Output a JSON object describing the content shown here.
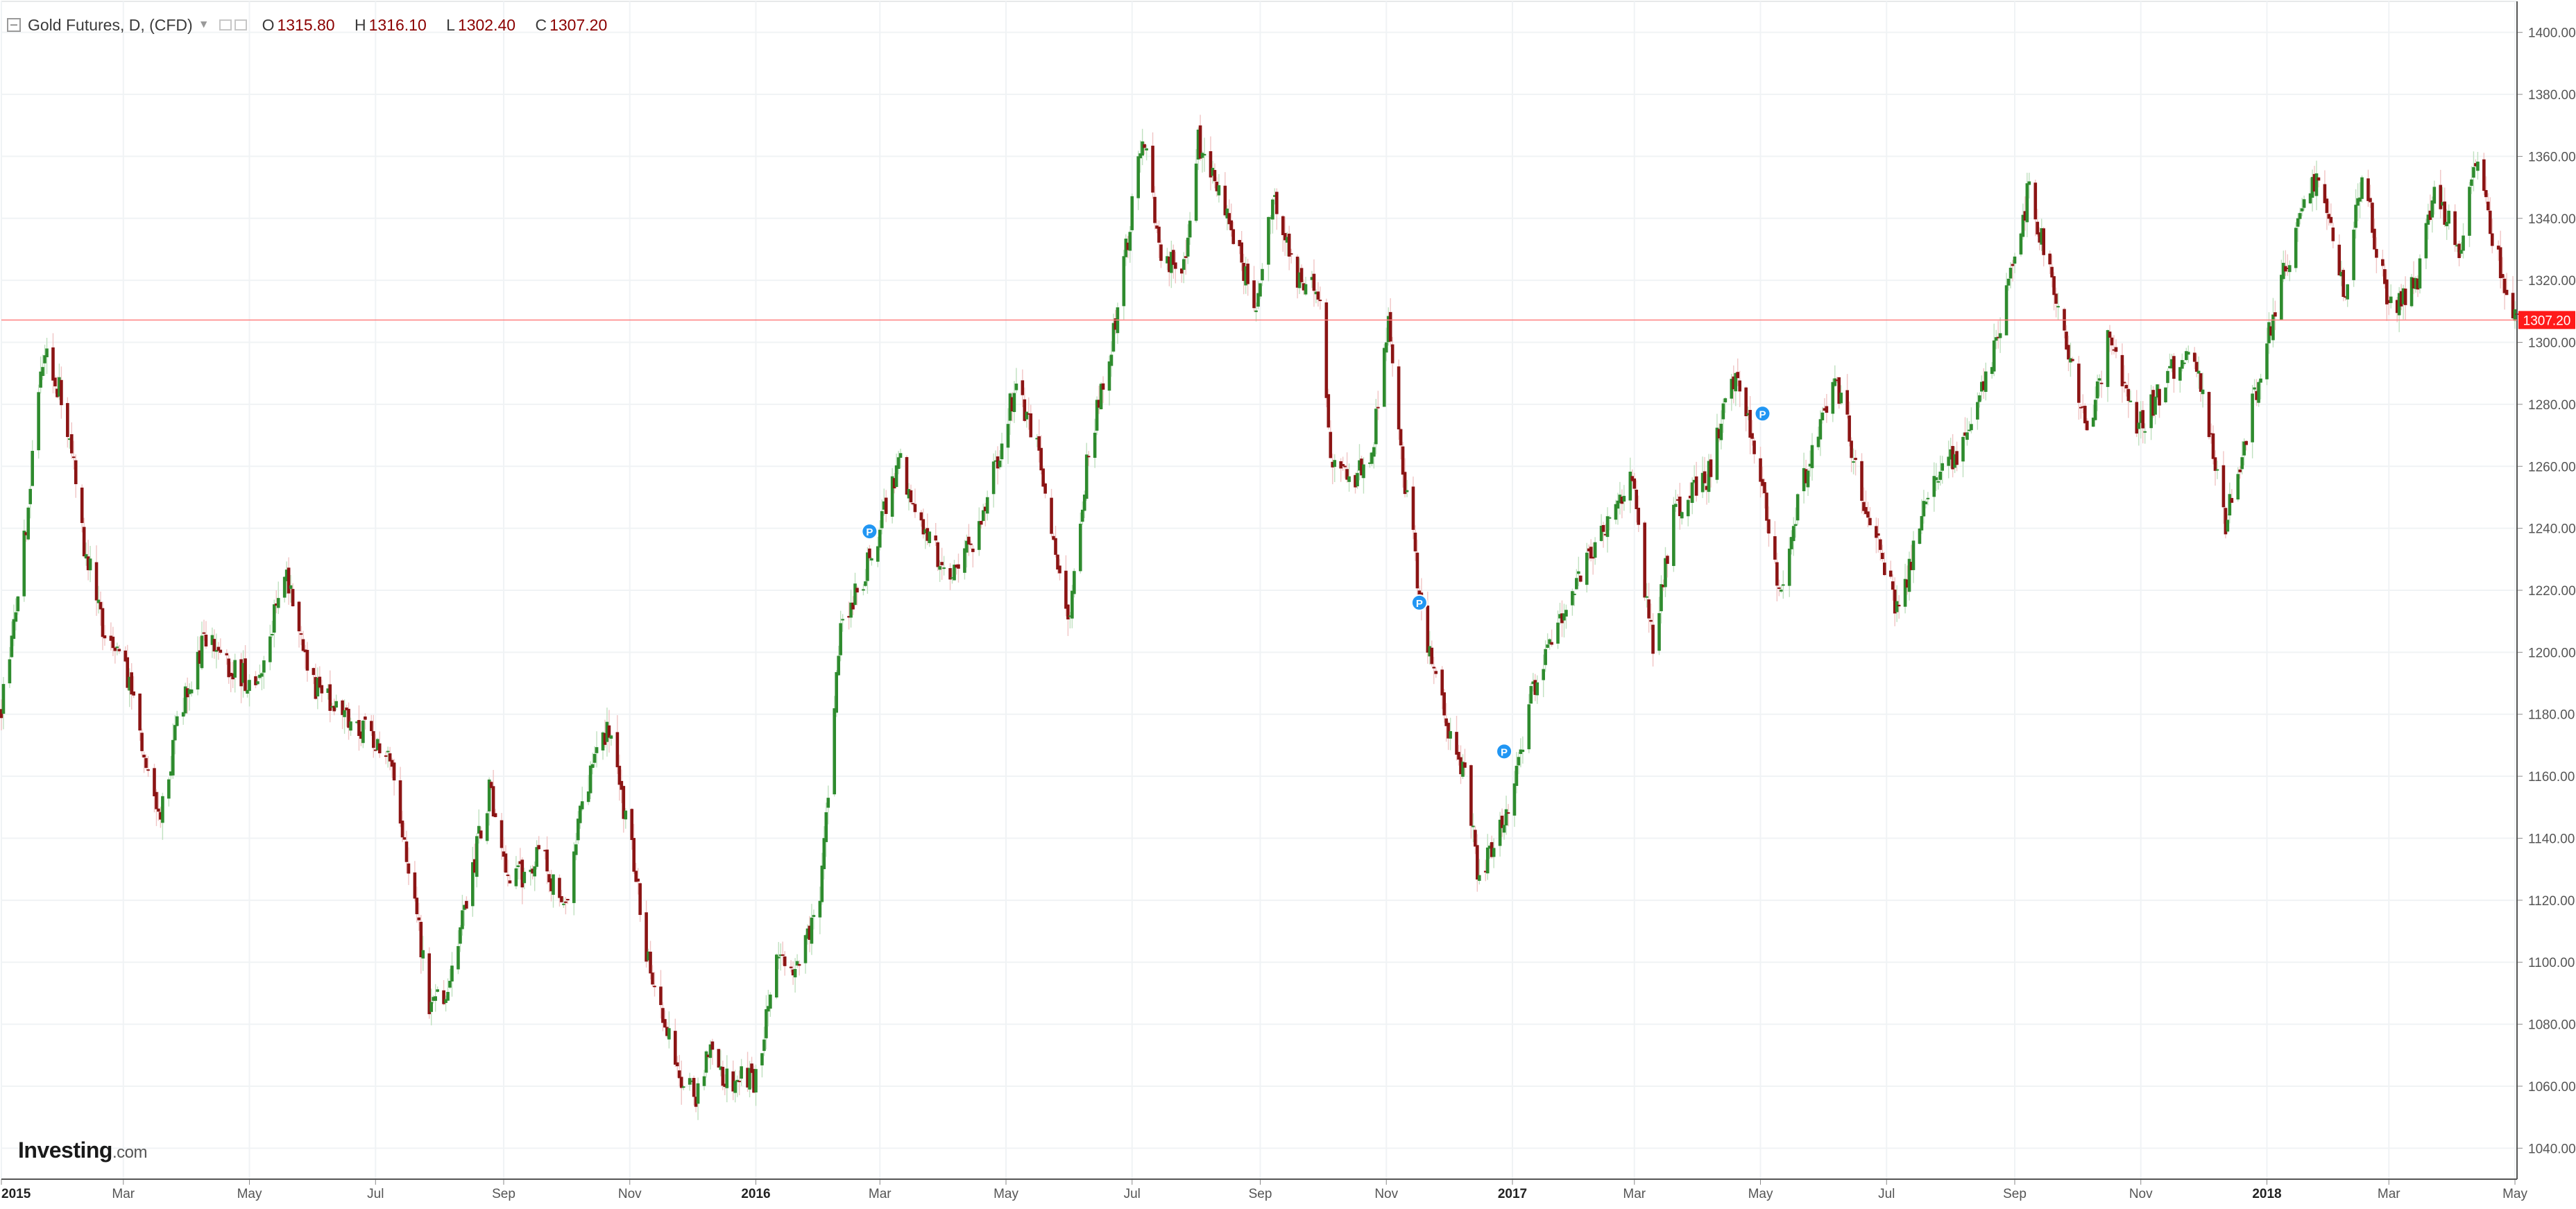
{
  "legend": {
    "title": "Gold Futures, D, (CFD)",
    "o_label": "O",
    "o_value": "1315.80",
    "h_label": "H",
    "h_value": "1316.10",
    "l_label": "L",
    "l_value": "1302.40",
    "c_label": "C",
    "c_value": "1307.20"
  },
  "brand": {
    "name": "Investing",
    "suffix": ".com"
  },
  "chart_data": {
    "type": "candlestick",
    "title": "Gold Futures, D, (CFD)",
    "xlabel": "",
    "ylabel": "",
    "y_range": [
      1030,
      1410
    ],
    "y_ticks": [
      "1040.00",
      "1060.00",
      "1080.00",
      "1100.00",
      "1120.00",
      "1140.00",
      "1160.00",
      "1180.00",
      "1200.00",
      "1220.00",
      "1240.00",
      "1260.00",
      "1280.00",
      "1300.00",
      "1320.00",
      "1340.00",
      "1360.00",
      "1380.00",
      "1400.00"
    ],
    "x_range": [
      "2015-01-01",
      "2018-05-02"
    ],
    "x_ticks": [
      {
        "date": "2015-01-01",
        "label": "2015",
        "bold": true
      },
      {
        "date": "2015-03-01",
        "label": "Mar",
        "bold": false
      },
      {
        "date": "2015-05-01",
        "label": "May",
        "bold": false
      },
      {
        "date": "2015-07-01",
        "label": "Jul",
        "bold": false
      },
      {
        "date": "2015-09-01",
        "label": "Sep",
        "bold": false
      },
      {
        "date": "2015-11-01",
        "label": "Nov",
        "bold": false
      },
      {
        "date": "2016-01-01",
        "label": "2016",
        "bold": true
      },
      {
        "date": "2016-03-01",
        "label": "Mar",
        "bold": false
      },
      {
        "date": "2016-05-01",
        "label": "May",
        "bold": false
      },
      {
        "date": "2016-07-01",
        "label": "Jul",
        "bold": false
      },
      {
        "date": "2016-09-01",
        "label": "Sep",
        "bold": false
      },
      {
        "date": "2016-11-01",
        "label": "Nov",
        "bold": false
      },
      {
        "date": "2017-01-01",
        "label": "2017",
        "bold": true
      },
      {
        "date": "2017-03-01",
        "label": "Mar",
        "bold": false
      },
      {
        "date": "2017-05-01",
        "label": "May",
        "bold": false
      },
      {
        "date": "2017-07-01",
        "label": "Jul",
        "bold": false
      },
      {
        "date": "2017-09-01",
        "label": "Sep",
        "bold": false
      },
      {
        "date": "2017-11-01",
        "label": "Nov",
        "bold": false
      },
      {
        "date": "2018-01-01",
        "label": "2018",
        "bold": true
      },
      {
        "date": "2018-03-01",
        "label": "Mar",
        "bold": false
      },
      {
        "date": "2018-05-01",
        "label": "May",
        "bold": false
      }
    ],
    "price_path": [
      [
        "2015-01-01",
        1182
      ],
      [
        "2015-01-10",
        1222
      ],
      [
        "2015-01-22",
        1300
      ],
      [
        "2015-02-01",
        1278
      ],
      [
        "2015-02-10",
        1235
      ],
      [
        "2015-02-20",
        1205
      ],
      [
        "2015-03-05",
        1190
      ],
      [
        "2015-03-12",
        1160
      ],
      [
        "2015-03-19",
        1150
      ],
      [
        "2015-03-30",
        1185
      ],
      [
        "2015-04-10",
        1205
      ],
      [
        "2015-04-20",
        1195
      ],
      [
        "2015-05-05",
        1190
      ],
      [
        "2015-05-18",
        1225
      ],
      [
        "2015-06-01",
        1190
      ],
      [
        "2015-06-15",
        1180
      ],
      [
        "2015-07-01",
        1172
      ],
      [
        "2015-07-10",
        1160
      ],
      [
        "2015-07-20",
        1120
      ],
      [
        "2015-07-27",
        1085
      ],
      [
        "2015-08-05",
        1090
      ],
      [
        "2015-08-20",
        1140
      ],
      [
        "2015-08-25",
        1155
      ],
      [
        "2015-09-05",
        1125
      ],
      [
        "2015-09-20",
        1135
      ],
      [
        "2015-09-30",
        1115
      ],
      [
        "2015-10-10",
        1155
      ],
      [
        "2015-10-22",
        1175
      ],
      [
        "2015-11-01",
        1140
      ],
      [
        "2015-11-12",
        1090
      ],
      [
        "2015-11-25",
        1065
      ],
      [
        "2015-12-03",
        1055
      ],
      [
        "2015-12-10",
        1075
      ],
      [
        "2015-12-17",
        1062
      ],
      [
        "2016-01-01",
        1062
      ],
      [
        "2016-01-10",
        1100
      ],
      [
        "2016-01-20",
        1095
      ],
      [
        "2016-02-01",
        1120
      ],
      [
        "2016-02-11",
        1210
      ],
      [
        "2016-02-20",
        1220
      ],
      [
        "2016-03-01",
        1240
      ],
      [
        "2016-03-10",
        1262
      ],
      [
        "2016-03-20",
        1245
      ],
      [
        "2016-04-01",
        1225
      ],
      [
        "2016-04-15",
        1235
      ],
      [
        "2016-04-28",
        1265
      ],
      [
        "2016-05-05",
        1285
      ],
      [
        "2016-05-15",
        1270
      ],
      [
        "2016-05-31",
        1210
      ],
      [
        "2016-06-10",
        1265
      ],
      [
        "2016-06-24",
        1310
      ],
      [
        "2016-07-06",
        1368
      ],
      [
        "2016-07-15",
        1330
      ],
      [
        "2016-07-25",
        1320
      ],
      [
        "2016-08-02",
        1365
      ],
      [
        "2016-08-15",
        1345
      ],
      [
        "2016-08-30",
        1310
      ],
      [
        "2016-09-07",
        1345
      ],
      [
        "2016-09-20",
        1320
      ],
      [
        "2016-09-30",
        1315
      ],
      [
        "2016-10-05",
        1265
      ],
      [
        "2016-10-15",
        1255
      ],
      [
        "2016-10-25",
        1265
      ],
      [
        "2016-11-02",
        1305
      ],
      [
        "2016-11-10",
        1255
      ],
      [
        "2016-11-20",
        1205
      ],
      [
        "2016-12-01",
        1175
      ],
      [
        "2016-12-10",
        1160
      ],
      [
        "2016-12-15",
        1128
      ],
      [
        "2016-12-28",
        1145
      ],
      [
        "2017-01-10",
        1185
      ],
      [
        "2017-01-25",
        1210
      ],
      [
        "2017-02-10",
        1235
      ],
      [
        "2017-02-28",
        1255
      ],
      [
        "2017-03-10",
        1200
      ],
      [
        "2017-03-20",
        1245
      ],
      [
        "2017-04-05",
        1255
      ],
      [
        "2017-04-17",
        1290
      ],
      [
        "2017-04-28",
        1268
      ],
      [
        "2017-05-10",
        1220
      ],
      [
        "2017-05-25",
        1265
      ],
      [
        "2017-06-06",
        1290
      ],
      [
        "2017-06-20",
        1250
      ],
      [
        "2017-07-07",
        1212
      ],
      [
        "2017-07-20",
        1250
      ],
      [
        "2017-08-05",
        1265
      ],
      [
        "2017-08-20",
        1290
      ],
      [
        "2017-09-08",
        1350
      ],
      [
        "2017-09-20",
        1315
      ],
      [
        "2017-10-06",
        1270
      ],
      [
        "2017-10-16",
        1300
      ],
      [
        "2017-10-31",
        1272
      ],
      [
        "2017-11-15",
        1290
      ],
      [
        "2017-11-27",
        1295
      ],
      [
        "2017-12-12",
        1242
      ],
      [
        "2017-12-25",
        1280
      ],
      [
        "2018-01-10",
        1325
      ],
      [
        "2018-01-25",
        1355
      ],
      [
        "2018-02-08",
        1315
      ],
      [
        "2018-02-16",
        1355
      ],
      [
        "2018-03-01",
        1310
      ],
      [
        "2018-03-15",
        1320
      ],
      [
        "2018-03-23",
        1350
      ],
      [
        "2018-04-05",
        1330
      ],
      [
        "2018-04-11",
        1360
      ],
      [
        "2018-04-20",
        1335
      ],
      [
        "2018-04-30",
        1310
      ],
      [
        "2018-05-01",
        1307
      ]
    ],
    "last_price": 1307.2,
    "last_price_label": "1307.20",
    "markers": [
      {
        "date": "2016-02-25",
        "price": 1239,
        "label": "P"
      },
      {
        "date": "2016-11-17",
        "price": 1216,
        "label": "P"
      },
      {
        "date": "2016-12-28",
        "price": 1168,
        "label": "P"
      },
      {
        "date": "2017-05-02",
        "price": 1277,
        "label": "P"
      }
    ],
    "grid": true,
    "colors": {
      "up": "#2e8b2e",
      "down": "#8b1414",
      "wick_up": "#bfe0bf",
      "wick_down": "#f0c4c4",
      "grid": "#f0f3f5",
      "axis": "#555555",
      "price_line": "#ff8080",
      "price_badge": "#ff1a1a",
      "marker": "#2196f3"
    }
  }
}
